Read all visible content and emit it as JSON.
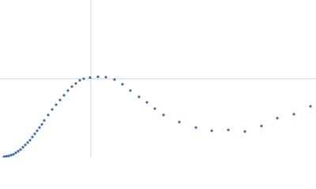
{
  "chart_data": {
    "type": "scatter",
    "x": [
      5,
      8,
      11,
      14,
      17,
      20,
      23,
      26,
      29,
      32,
      35,
      38,
      41,
      44,
      47,
      50,
      53,
      56,
      61,
      66,
      71,
      76,
      81,
      86,
      91,
      96,
      101,
      106,
      114,
      124,
      134,
      145,
      155,
      165,
      176,
      186,
      196,
      207,
      227,
      248,
      268,
      289,
      310,
      331,
      351,
      372,
      393
    ],
    "values": [
      1,
      1.5,
      2,
      3,
      4,
      6,
      8,
      10,
      13,
      16,
      19,
      22,
      26,
      30,
      34,
      38,
      42,
      47,
      54,
      61,
      67,
      73,
      79,
      85,
      90,
      94,
      98,
      100,
      101.5,
      102.5,
      102,
      99,
      93,
      85,
      77,
      70,
      62,
      54,
      45,
      38,
      34,
      35,
      33,
      40,
      50,
      55,
      65
    ],
    "color": "#3a6fb5",
    "xlim": [
      0,
      400
    ],
    "ylim": [
      0,
      200
    ],
    "reference_lines": {
      "x": 115,
      "y": 100
    }
  }
}
